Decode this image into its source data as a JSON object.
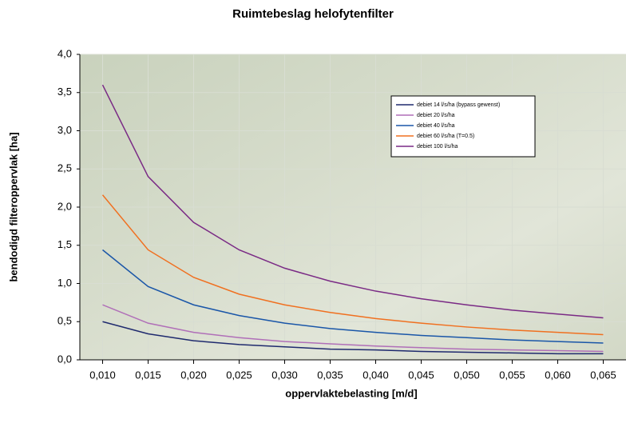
{
  "chart_data": {
    "type": "line",
    "title": "Ruimtebeslag helofytenfilter",
    "x_label": "oppervlaktebelasting [m/d]",
    "y_label": "bendodigd filteroppervlak [ha]",
    "x": [
      0.01,
      0.015,
      0.02,
      0.025,
      0.03,
      0.035,
      0.04,
      0.045,
      0.05,
      0.055,
      0.06,
      0.065
    ],
    "series": [
      {
        "name": "debiet 14 l/s/ha (bypass gewenst)",
        "color": "#1f2a6e",
        "values": [
          0.5,
          0.34,
          0.25,
          0.2,
          0.17,
          0.14,
          0.13,
          0.11,
          0.1,
          0.09,
          0.08,
          0.08
        ]
      },
      {
        "name": "debiet 20 l/s/ha",
        "color": "#b06fb8",
        "values": [
          0.72,
          0.48,
          0.36,
          0.29,
          0.24,
          0.21,
          0.18,
          0.16,
          0.14,
          0.13,
          0.12,
          0.11
        ]
      },
      {
        "name": "debiet 40 l/s/ha",
        "color": "#1a56a8",
        "values": [
          1.44,
          0.96,
          0.72,
          0.58,
          0.48,
          0.41,
          0.36,
          0.32,
          0.29,
          0.26,
          0.24,
          0.22
        ]
      },
      {
        "name": "debiet 60 l/s/ha (T=0.5)",
        "color": "#f07020",
        "values": [
          2.16,
          1.44,
          1.08,
          0.86,
          0.72,
          0.62,
          0.54,
          0.48,
          0.43,
          0.39,
          0.36,
          0.33
        ]
      },
      {
        "name": "debiet 100 l/s/ha",
        "color": "#7a2a85",
        "values": [
          3.6,
          2.4,
          1.8,
          1.44,
          1.2,
          1.03,
          0.9,
          0.8,
          0.72,
          0.65,
          0.6,
          0.55
        ]
      }
    ],
    "xlim": [
      0.0075,
      0.0675
    ],
    "xticks": [
      {
        "value": 0.01,
        "label": "0,010"
      },
      {
        "value": 0.015,
        "label": "0,015"
      },
      {
        "value": 0.02,
        "label": "0,020"
      },
      {
        "value": 0.025,
        "label": "0,025"
      },
      {
        "value": 0.03,
        "label": "0,030"
      },
      {
        "value": 0.035,
        "label": "0,035"
      },
      {
        "value": 0.04,
        "label": "0,040"
      },
      {
        "value": 0.045,
        "label": "0,045"
      },
      {
        "value": 0.05,
        "label": "0,050"
      },
      {
        "value": 0.055,
        "label": "0,055"
      },
      {
        "value": 0.06,
        "label": "0,060"
      },
      {
        "value": 0.065,
        "label": "0,065"
      }
    ],
    "ylim": [
      0,
      4
    ],
    "yticks": [
      {
        "value": 0,
        "label": "0,0"
      },
      {
        "value": 0.5,
        "label": "0,5"
      },
      {
        "value": 1,
        "label": "1,0"
      },
      {
        "value": 1.5,
        "label": "1,5"
      },
      {
        "value": 2,
        "label": "2,0"
      },
      {
        "value": 2.5,
        "label": "2,5"
      },
      {
        "value": 3,
        "label": "3,0"
      },
      {
        "value": 3.5,
        "label": "3,5"
      },
      {
        "value": 4,
        "label": "4,0"
      }
    ],
    "grid": true
  }
}
